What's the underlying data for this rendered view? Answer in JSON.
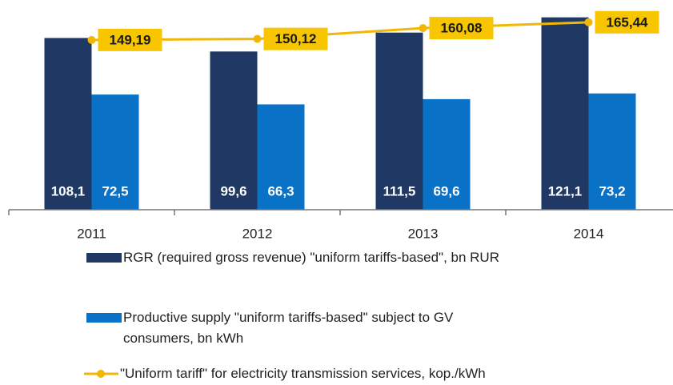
{
  "chart_data": {
    "type": "bar",
    "categories": [
      "2011",
      "2012",
      "2013",
      "2014"
    ],
    "ylim": [
      0,
      130
    ],
    "y2lim": [
      -7,
      183
    ],
    "series": [
      {
        "name": "RGR (required gross revenue)  \"uniform tariffs-based\", bn RUR",
        "type": "bar",
        "color": "#1f3864",
        "values": [
          108.1,
          99.6,
          111.5,
          121.1
        ],
        "value_labels": [
          "108,1",
          "99,6",
          "111,5",
          "121,1"
        ]
      },
      {
        "name": "Productive supply  \"uniform tariffs-based\" subject to GV consumers, bn kWh",
        "type": "bar",
        "color": "#0a72c6",
        "values": [
          72.5,
          66.3,
          69.6,
          73.2
        ],
        "value_labels": [
          "72,5",
          "66,3",
          "69,6",
          "73,2"
        ]
      },
      {
        "name": "\"Uniform tariff\" for electricity transmission services, kop./kWh",
        "type": "line",
        "axis": "y2",
        "color": "#f2b705",
        "values": [
          149.19,
          150.12,
          160.08,
          165.44
        ],
        "value_labels": [
          "149,19",
          "150,12",
          "160,08",
          "165,44"
        ]
      }
    ]
  }
}
